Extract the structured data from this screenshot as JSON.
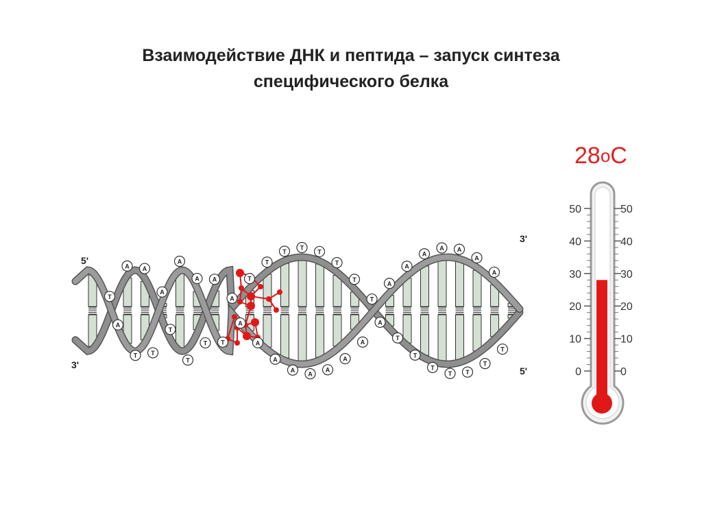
{
  "slide": {
    "title_line1": "Взаимодействие ДНК и пептида – запуск синтеза",
    "title_line2": "специфического белка"
  },
  "dna": {
    "label_5_left": "5'",
    "label_3_left": "3'",
    "label_3_right": "3'",
    "label_5_right": "5'",
    "base_labels": [
      "T",
      "A",
      "A",
      "T",
      "A",
      "T",
      "A",
      "T",
      "A",
      "T",
      "A",
      "T",
      "A",
      "T",
      "A",
      "A",
      "T",
      "A",
      "T",
      "A",
      "T",
      "A",
      "T",
      "A",
      "T",
      "A",
      "T",
      "A",
      "T",
      "A",
      "T",
      "A",
      "A",
      "T",
      "A",
      "T",
      "A",
      "T",
      "A",
      "T",
      "A",
      "T",
      "A",
      "T",
      "A",
      "T",
      "A",
      "T",
      "A"
    ]
  },
  "thermometer": {
    "value_text": "28",
    "degree_symbol": "o",
    "unit": "C",
    "value": 28,
    "scale_min": 0,
    "scale_max": 50,
    "ticks_left": [
      "50",
      "40",
      "30",
      "20",
      "10",
      "0"
    ],
    "ticks_right": [
      "50",
      "40",
      "30",
      "20",
      "10",
      "0"
    ],
    "liquid_color": "#e01818"
  }
}
